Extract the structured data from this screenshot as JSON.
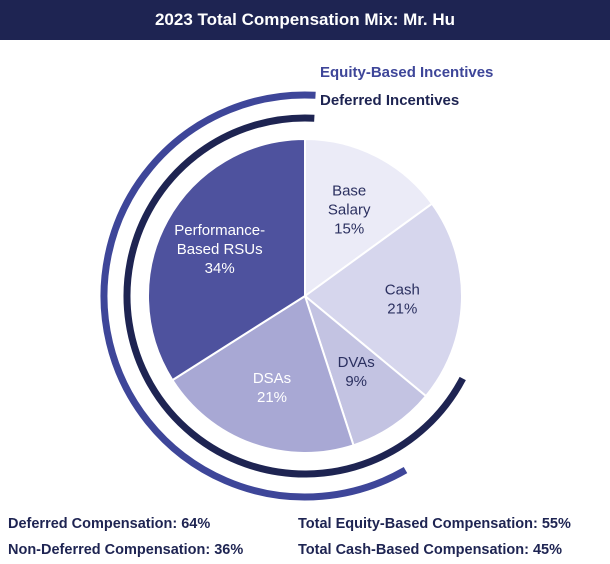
{
  "title": "2023 Total Compensation Mix: Mr. Hu",
  "chart_data": {
    "type": "pie",
    "title": "2023 Total Compensation Mix: Mr. Hu",
    "slices": [
      {
        "label_lines": [
          "Base",
          "Salary"
        ],
        "value_label": "15%",
        "value": 15,
        "color": "#ebebf7",
        "text_color": "#2b3060"
      },
      {
        "label_lines": [
          "Cash"
        ],
        "value_label": "21%",
        "value": 21,
        "color": "#d6d6ed",
        "text_color": "#2b3060"
      },
      {
        "label_lines": [
          "DVAs"
        ],
        "value_label": "9%",
        "value": 9,
        "color": "#c3c3e2",
        "text_color": "#2b3060"
      },
      {
        "label_lines": [
          "DSAs"
        ],
        "value_label": "21%",
        "value": 21,
        "color": "#a8a8d4",
        "text_color": "#ffffff"
      },
      {
        "label_lines": [
          "Performance-",
          "Based RSUs"
        ],
        "value_label": "34%",
        "value": 34,
        "color": "#4e529e",
        "text_color": "#ffffff"
      }
    ],
    "arcs": [
      {
        "name": "Equity-Based Incentives",
        "covers": [
          "DSAs",
          "Performance-Based RSUs"
        ],
        "color": "#3e4699"
      },
      {
        "name": "Deferred Incentives",
        "covers": [
          "DVAs",
          "DSAs",
          "Performance-Based RSUs"
        ],
        "color": "#1e2452"
      }
    ]
  },
  "footer": {
    "deferred": "Deferred Compensation: 64%",
    "non_deferred": "Non-Deferred Compensation: 36%",
    "equity": "Total Equity-Based Compensation: 55%",
    "cash": "Total Cash-Based Compensation: 45%"
  }
}
